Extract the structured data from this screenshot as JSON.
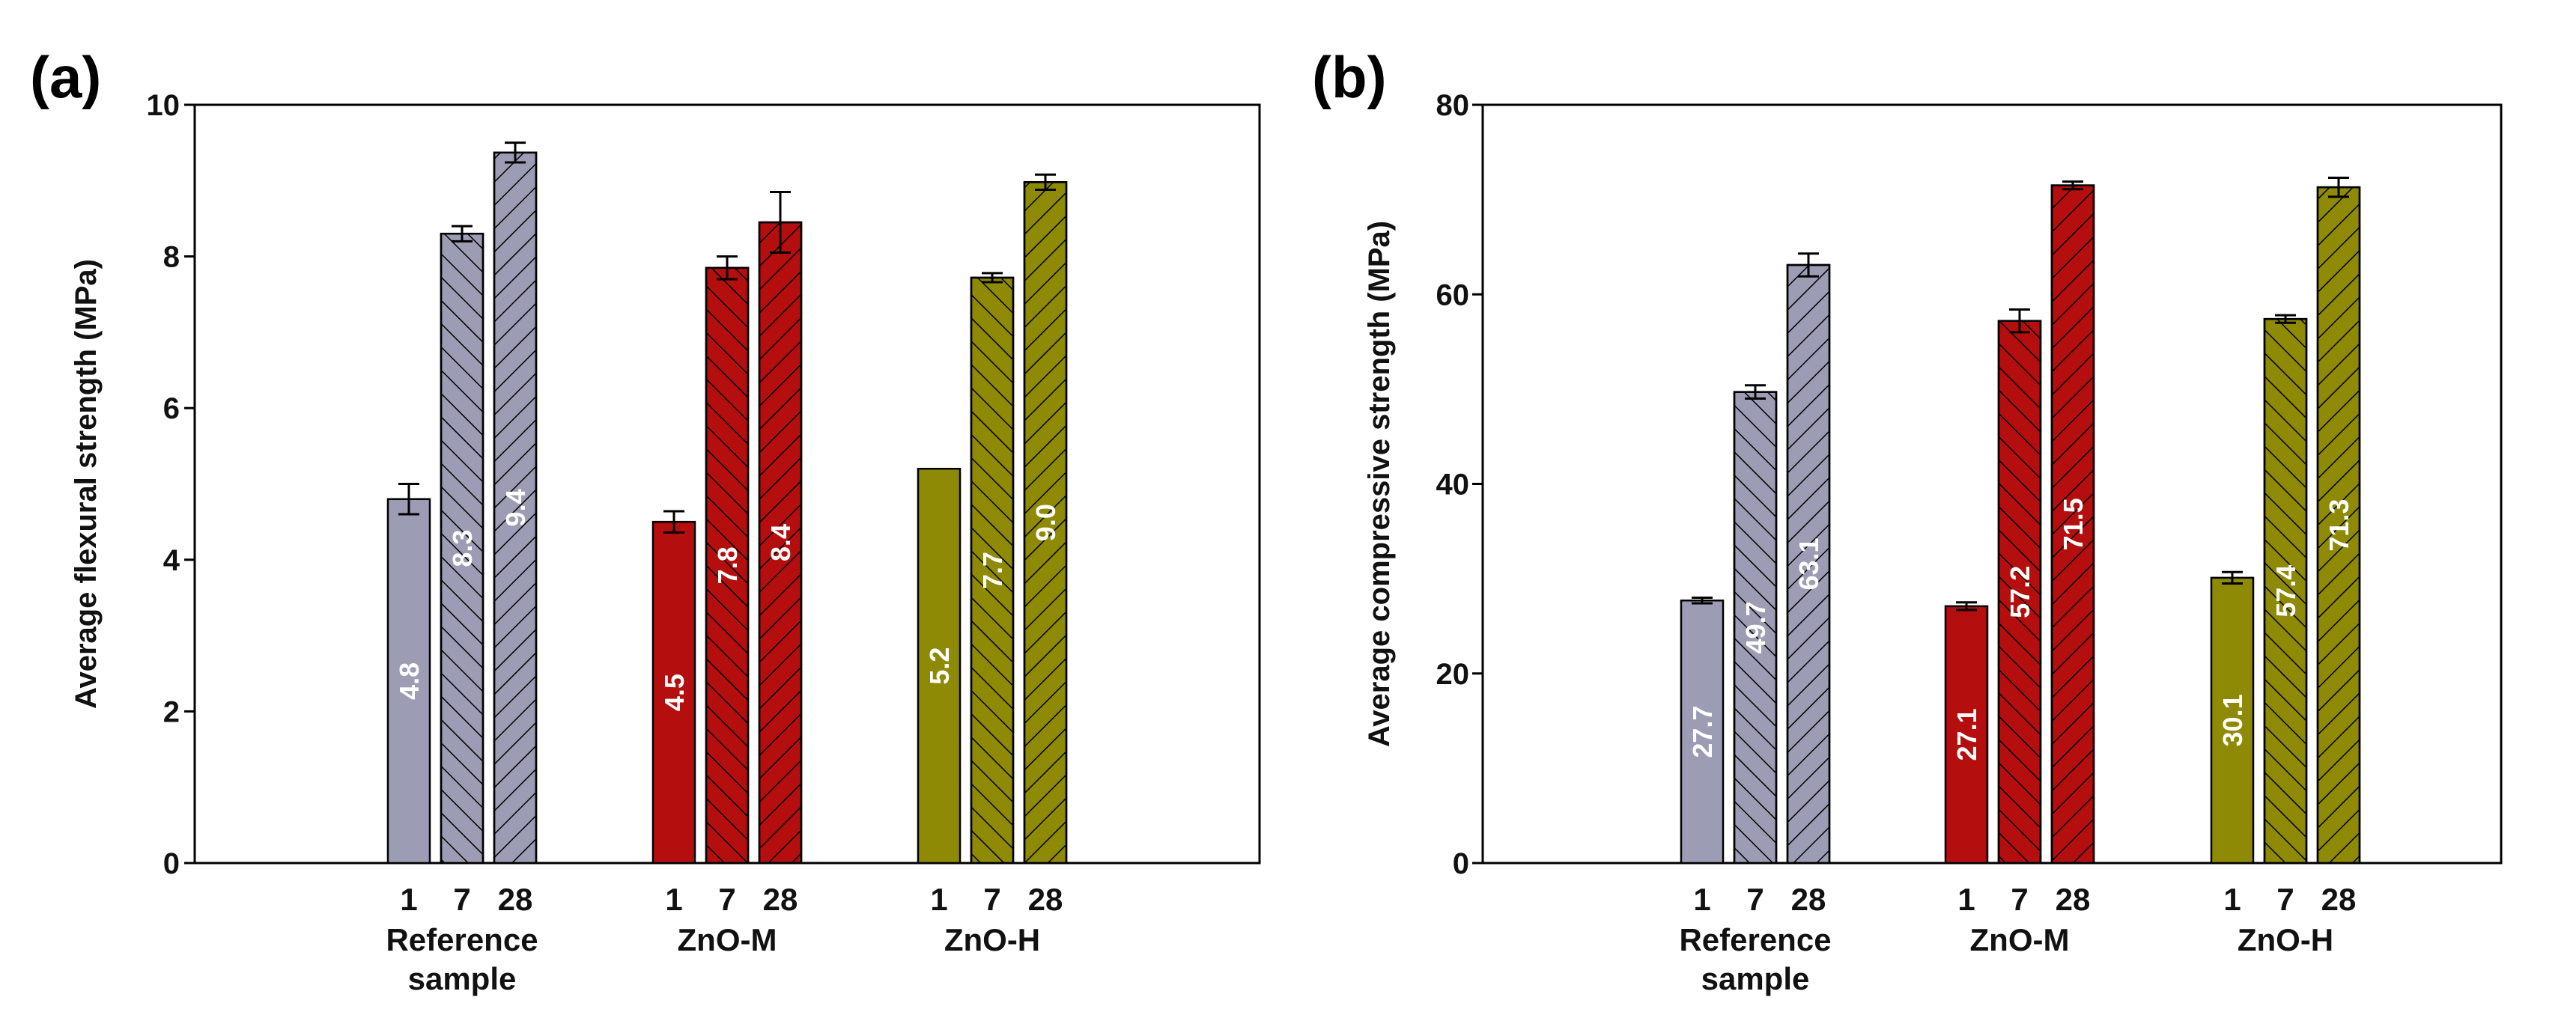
{
  "colors": {
    "reference": "#9c9cb4",
    "zno_m": "#b40e0e",
    "zno_h": "#8e8a06"
  },
  "chart_data": [
    {
      "type": "bar",
      "panel_label": "(a)",
      "ylabel": "Average flexural strength (MPa)",
      "xlabel": "",
      "ylim": [
        0,
        10
      ],
      "yticks": [
        0,
        2,
        4,
        6,
        8,
        10
      ],
      "groups": [
        {
          "label": [
            "Reference",
            "sample"
          ],
          "color_key": "reference",
          "bars": [
            {
              "age": "1",
              "value": 4.8,
              "error": 0.2,
              "label": "4.8",
              "pattern": "solid"
            },
            {
              "age": "7",
              "value": 8.3,
              "error": 0.1,
              "label": "8.3",
              "pattern": "fwd"
            },
            {
              "age": "28",
              "value": 9.37,
              "error": 0.13,
              "label": "9.4",
              "pattern": "back"
            }
          ]
        },
        {
          "label": [
            "ZnO-M"
          ],
          "color_key": "zno_m",
          "bars": [
            {
              "age": "1",
              "value": 4.5,
              "error": 0.14,
              "label": "4.5",
              "pattern": "solid"
            },
            {
              "age": "7",
              "value": 7.85,
              "error": 0.15,
              "label": "7.8",
              "pattern": "fwd"
            },
            {
              "age": "28",
              "value": 8.45,
              "error": 0.4,
              "label": "8.4",
              "pattern": "back"
            }
          ]
        },
        {
          "label": [
            "ZnO-H"
          ],
          "color_key": "zno_h",
          "bars": [
            {
              "age": "1",
              "value": 5.2,
              "error": 0,
              "label": "5.2",
              "pattern": "solid"
            },
            {
              "age": "7",
              "value": 7.72,
              "error": 0.06,
              "label": "7.7",
              "pattern": "fwd"
            },
            {
              "age": "28",
              "value": 8.98,
              "error": 0.1,
              "label": "9.0",
              "pattern": "back"
            }
          ]
        }
      ]
    },
    {
      "type": "bar",
      "panel_label": "(b)",
      "ylabel": "Average compressive strength (MPa)",
      "xlabel": "",
      "ylim": [
        0,
        80
      ],
      "yticks": [
        0,
        20,
        40,
        60,
        80
      ],
      "groups": [
        {
          "label": [
            "Reference",
            "sample"
          ],
          "color_key": "reference",
          "bars": [
            {
              "age": "1",
              "value": 27.7,
              "error": 0.3,
              "label": "27.7",
              "pattern": "solid"
            },
            {
              "age": "7",
              "value": 49.7,
              "error": 0.7,
              "label": "49.7",
              "pattern": "fwd"
            },
            {
              "age": "28",
              "value": 63.1,
              "error": 1.2,
              "label": "63.1",
              "pattern": "back"
            }
          ]
        },
        {
          "label": [
            "ZnO-M"
          ],
          "color_key": "zno_m",
          "bars": [
            {
              "age": "1",
              "value": 27.1,
              "error": 0.4,
              "label": "27.1",
              "pattern": "solid"
            },
            {
              "age": "7",
              "value": 57.2,
              "error": 1.2,
              "label": "57.2",
              "pattern": "fwd"
            },
            {
              "age": "28",
              "value": 71.5,
              "error": 0.4,
              "label": "71.5",
              "pattern": "back"
            }
          ]
        },
        {
          "label": [
            "ZnO-H"
          ],
          "color_key": "zno_h",
          "bars": [
            {
              "age": "1",
              "value": 30.1,
              "error": 0.6,
              "label": "30.1",
              "pattern": "solid"
            },
            {
              "age": "7",
              "value": 57.4,
              "error": 0.4,
              "label": "57.4",
              "pattern": "fwd"
            },
            {
              "age": "28",
              "value": 71.3,
              "error": 1.0,
              "label": "71.3",
              "pattern": "back"
            }
          ]
        }
      ]
    }
  ]
}
